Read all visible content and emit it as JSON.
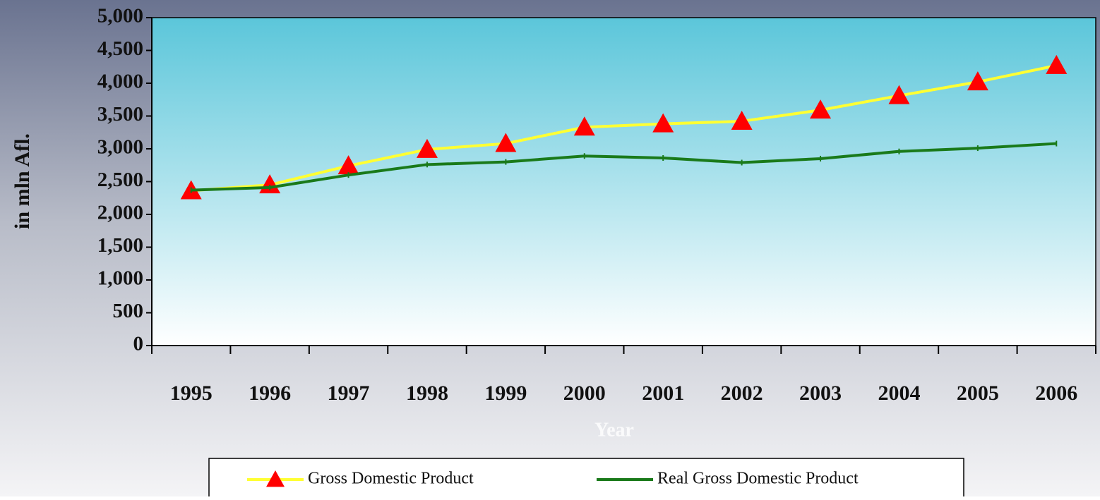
{
  "chart_data": {
    "type": "line",
    "x_label": "Year",
    "y_label": "in mln Afl.",
    "categories": [
      "1995",
      "1996",
      "1997",
      "1998",
      "1999",
      "2000",
      "2001",
      "2002",
      "2003",
      "2004",
      "2005",
      "2006"
    ],
    "series": [
      {
        "name": "Gross Domestic Product",
        "color": "#ffff33",
        "marker_color": "#ff0000",
        "values": [
          2360,
          2450,
          2740,
          2990,
          3080,
          3330,
          3380,
          3420,
          3590,
          3810,
          4020,
          4270
        ]
      },
      {
        "name": "Real Gross Domestic Product",
        "color": "#1a7a1a",
        "values": [
          2370,
          2410,
          2600,
          2760,
          2800,
          2890,
          2860,
          2790,
          2850,
          2960,
          3010,
          3080
        ]
      }
    ],
    "ylim": [
      0,
      5000
    ],
    "yticks": [
      {
        "value": 0,
        "label": "0"
      },
      {
        "value": 500,
        "label": "500"
      },
      {
        "value": 1000,
        "label": "1,000"
      },
      {
        "value": 1500,
        "label": "1,500"
      },
      {
        "value": 2000,
        "label": "2,000"
      },
      {
        "value": 2500,
        "label": "2,500"
      },
      {
        "value": 3000,
        "label": "3,000"
      },
      {
        "value": 3500,
        "label": "3,500"
      },
      {
        "value": 4000,
        "label": "4,000"
      },
      {
        "value": 4500,
        "label": "4,500"
      },
      {
        "value": 5000,
        "label": "5,000"
      }
    ],
    "grid": false,
    "legend": "bottom"
  }
}
